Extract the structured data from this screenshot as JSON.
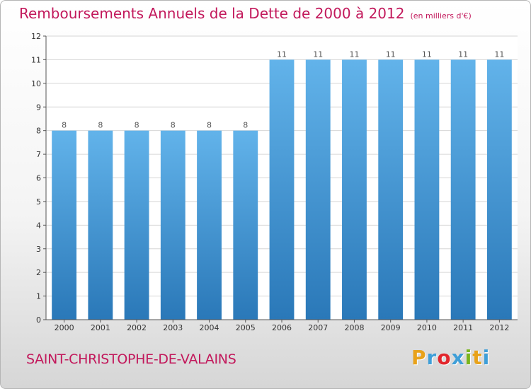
{
  "header": {
    "title": "Remboursements Annuels de la Dette de 2000 à 2012",
    "unit": "(en milliers d'€)"
  },
  "footer": {
    "commune": "SAINT-CHRISTOPHE-DE-VALAINS",
    "logo_letters": [
      "P",
      "r",
      "o",
      "x",
      "i",
      "t",
      "i"
    ],
    "logo_colors": [
      "#e8a21a",
      "#3f9fd8",
      "#e2262c",
      "#3f9fd8",
      "#7ab51d",
      "#e8a21a",
      "#3f9fd8"
    ]
  },
  "chart_data": {
    "type": "bar",
    "title": "Remboursements Annuels de la Dette de 2000 à 2012",
    "xlabel": "",
    "ylabel": "",
    "categories": [
      "2000",
      "2001",
      "2002",
      "2003",
      "2004",
      "2005",
      "2006",
      "2007",
      "2008",
      "2009",
      "2010",
      "2011",
      "2012"
    ],
    "values": [
      8,
      8,
      8,
      8,
      8,
      8,
      11,
      11,
      11,
      11,
      11,
      11,
      11
    ],
    "ylim": [
      0,
      12
    ],
    "yticks": [
      0,
      1,
      2,
      3,
      4,
      5,
      6,
      7,
      8,
      9,
      10,
      11,
      12
    ],
    "grid": true,
    "legend": "none",
    "bar_color_top": "#62b3ea",
    "bar_color_bottom": "#2a78b8"
  }
}
